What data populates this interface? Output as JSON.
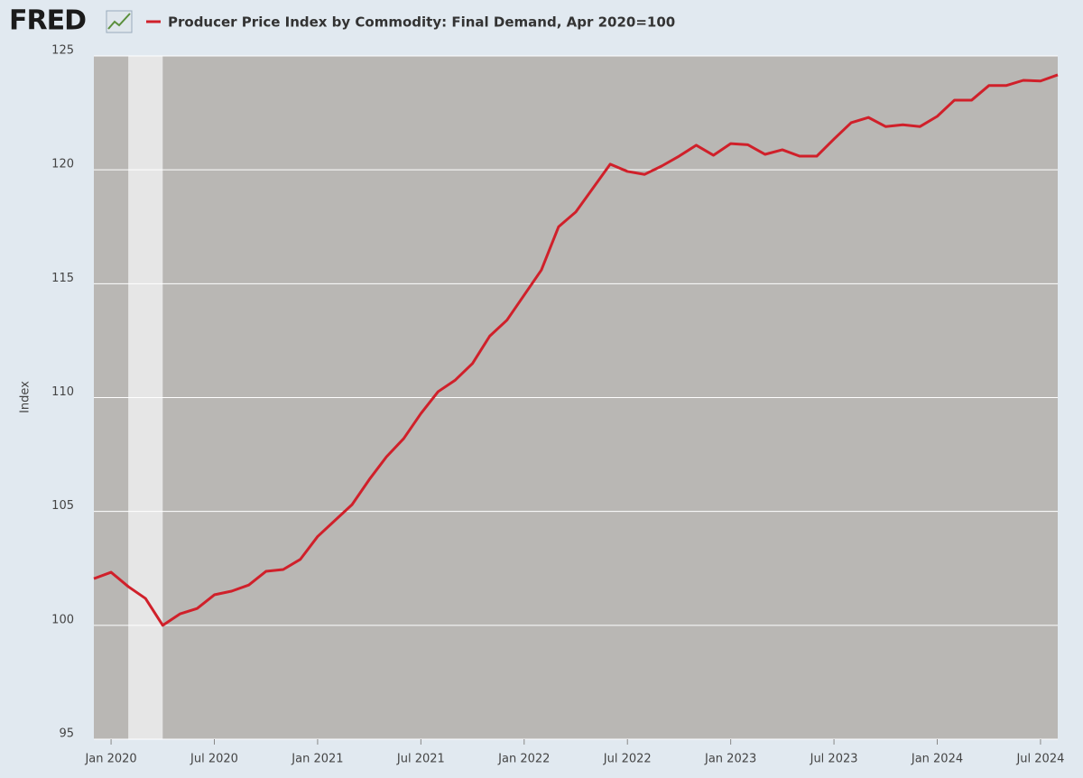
{
  "logo": "FRED",
  "chart_data": {
    "type": "line",
    "y_label": "Index",
    "x": [
      "2019-12",
      "2020-01",
      "2020-02",
      "2020-03",
      "2020-04",
      "2020-05",
      "2020-06",
      "2020-07",
      "2020-08",
      "2020-09",
      "2020-10",
      "2020-11",
      "2020-12",
      "2021-01",
      "2021-02",
      "2021-03",
      "2021-04",
      "2021-05",
      "2021-06",
      "2021-07",
      "2021-08",
      "2021-09",
      "2021-10",
      "2021-11",
      "2021-12",
      "2022-01",
      "2022-02",
      "2022-03",
      "2022-04",
      "2022-05",
      "2022-06",
      "2022-07",
      "2022-08",
      "2022-09",
      "2022-10",
      "2022-11",
      "2022-12",
      "2023-01",
      "2023-02",
      "2023-03",
      "2023-04",
      "2023-05",
      "2023-06",
      "2023-07",
      "2023-08",
      "2023-09",
      "2023-10",
      "2023-11",
      "2023-12",
      "2024-01",
      "2024-02",
      "2024-03",
      "2024-04",
      "2024-05",
      "2024-06",
      "2024-07",
      "2024-08"
    ],
    "series": [
      {
        "name": "Producer Price Index by Commodity: Final Demand, Apr 2020=100",
        "color": "#d0202a",
        "values": [
          102.05,
          102.33,
          101.7,
          101.18,
          100.0,
          100.5,
          100.74,
          101.34,
          101.5,
          101.77,
          102.37,
          102.45,
          102.9,
          103.9,
          104.6,
          105.3,
          106.4,
          107.4,
          108.2,
          109.3,
          110.26,
          110.77,
          111.5,
          112.7,
          113.4,
          114.5,
          115.6,
          117.5,
          118.15,
          119.2,
          120.25,
          119.93,
          119.8,
          120.17,
          120.6,
          121.08,
          120.64,
          121.15,
          121.1,
          120.68,
          120.88,
          120.6,
          120.6,
          121.35,
          122.07,
          122.3,
          121.9,
          121.98,
          121.9,
          122.35,
          123.06,
          123.06,
          123.7,
          123.7,
          123.93,
          123.9,
          124.17
        ]
      }
    ],
    "xlim": [
      "2019-12",
      "2024-08"
    ],
    "xticks": [
      {
        "value": "2020-01",
        "label": "Jan 2020"
      },
      {
        "value": "2020-07",
        "label": "Jul 2020"
      },
      {
        "value": "2021-01",
        "label": "Jan 2021"
      },
      {
        "value": "2021-07",
        "label": "Jul 2021"
      },
      {
        "value": "2022-01",
        "label": "Jan 2022"
      },
      {
        "value": "2022-07",
        "label": "Jul 2022"
      },
      {
        "value": "2023-01",
        "label": "Jan 2023"
      },
      {
        "value": "2023-07",
        "label": "Jul 2023"
      },
      {
        "value": "2024-01",
        "label": "Jan 2024"
      },
      {
        "value": "2024-07",
        "label": "Jul 2024"
      }
    ],
    "ylim": [
      95,
      125
    ],
    "yticks": [
      95,
      100,
      105,
      110,
      115,
      120,
      125
    ],
    "grid": true,
    "recessions": [
      {
        "start": "2020-02",
        "end": "2020-04"
      }
    ]
  }
}
